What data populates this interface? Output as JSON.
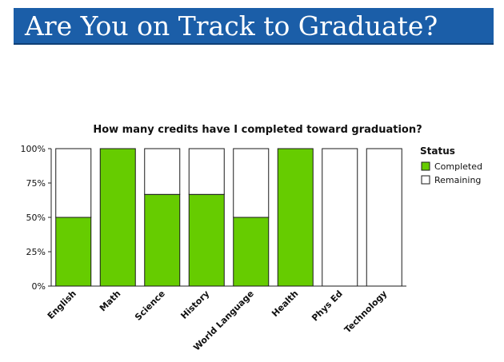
{
  "banner": {
    "title": "Are You on Track to Graduate?"
  },
  "chart_data": {
    "type": "bar",
    "stacked": true,
    "title": "How many credits have I completed toward graduation?",
    "xlabel": "",
    "ylabel": "",
    "categories": [
      "English",
      "Math",
      "Science",
      "History",
      "World Language",
      "Health",
      "Phys Ed",
      "Technology"
    ],
    "series": [
      {
        "name": "Completed",
        "values": [
          50,
          100,
          66.7,
          66.7,
          50,
          100,
          0,
          0
        ],
        "color": "#66cc00"
      },
      {
        "name": "Remaining",
        "values": [
          50,
          0,
          33.3,
          33.3,
          50,
          0,
          100,
          100
        ],
        "color": "#ffffff"
      }
    ],
    "y_ticks": [
      "0%",
      "25%",
      "50%",
      "75%",
      "100%"
    ],
    "ylim": [
      0,
      100
    ],
    "grid": false,
    "legend": {
      "title": "Status",
      "position": "right"
    }
  }
}
